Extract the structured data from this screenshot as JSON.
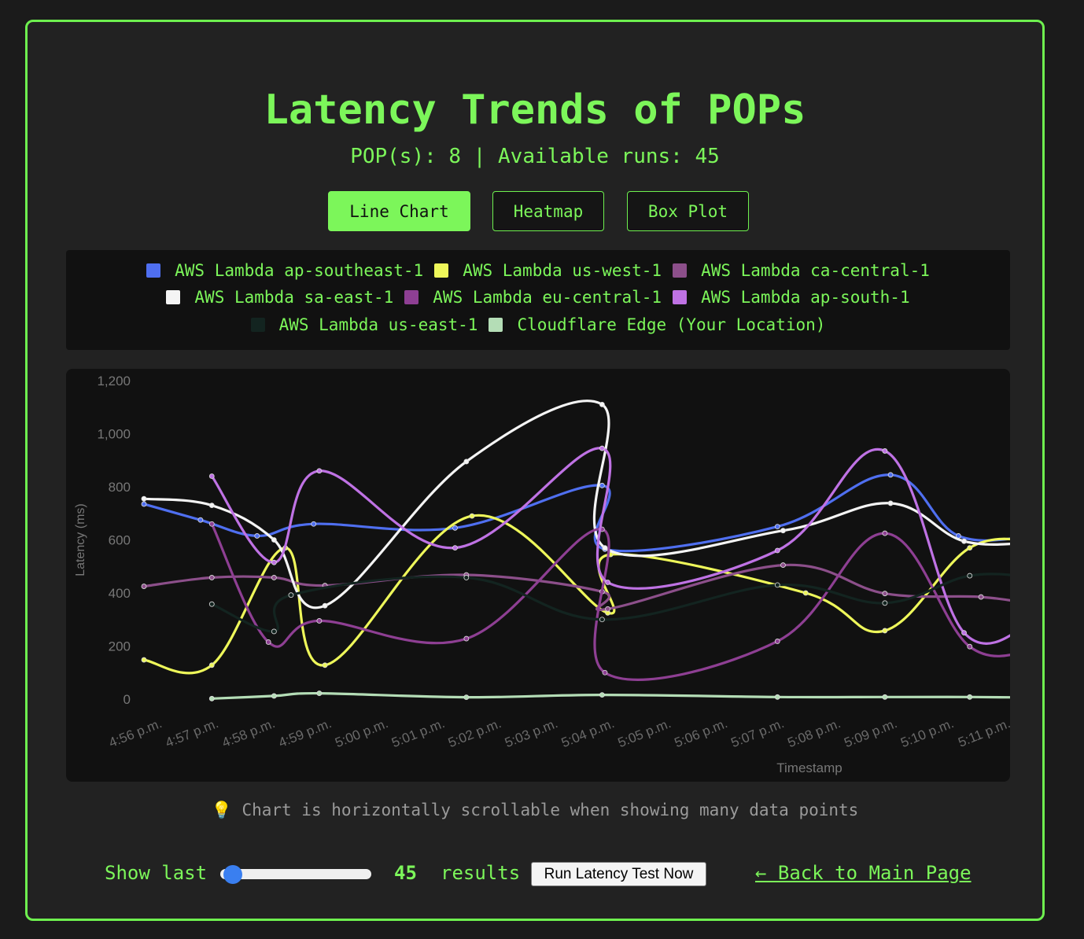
{
  "page": {
    "title": "Latency Trends of POPs",
    "subtitle": "POP(s): 8 | Available runs: 45",
    "accent_color": "#7cf65a"
  },
  "tabs": [
    {
      "label": "Line Chart",
      "active": true
    },
    {
      "label": "Heatmap",
      "active": false
    },
    {
      "label": "Box Plot",
      "active": false
    }
  ],
  "note": "💡 Chart is horizontally scrollable when showing many data points",
  "footer": {
    "show_last_label": "Show last",
    "slider_value": 45,
    "count_display": "45",
    "results_label": "results",
    "run_button_label": "Run Latency Test Now",
    "back_link_label": "← Back to Main Page"
  },
  "chart_data": {
    "type": "line",
    "title": "",
    "xlabel": "Timestamp",
    "ylabel": "Latency (ms)",
    "ylim": [
      0,
      1200
    ],
    "yticks": [
      0,
      200,
      400,
      600,
      800,
      1000,
      1200
    ],
    "ytick_labels": [
      "0",
      "200",
      "400",
      "600",
      "800",
      "1,000",
      "1,200"
    ],
    "grid": false,
    "legend_position": "top",
    "categories": [
      "4:56 p.m.",
      "4:57 p.m.",
      "4:58 p.m.",
      "4:59 p.m.",
      "5:00 p.m.",
      "5:01 p.m.",
      "5:02 p.m.",
      "5:03 p.m.",
      "5:04 p.m.",
      "5:05 p.m.",
      "5:06 p.m.",
      "5:07 p.m.",
      "5:08 p.m.",
      "5:09 p.m.",
      "5:10 p.m.",
      "5:11 p.m."
    ],
    "series": [
      {
        "name": "AWS Lambda ap-southeast-1",
        "color": "#4f6ff0",
        "points": [
          [
            0,
            735
          ],
          [
            1,
            675
          ],
          [
            2,
            615
          ],
          [
            3,
            660
          ],
          [
            5.5,
            645
          ],
          [
            8.1,
            805
          ],
          [
            8.15,
            565
          ],
          [
            11.2,
            650
          ],
          [
            13.2,
            845
          ],
          [
            14.4,
            615
          ],
          [
            15.8,
            618
          ]
        ]
      },
      {
        "name": "AWS Lambda us-west-1",
        "color": "#eef75a",
        "points": [
          [
            0,
            148
          ],
          [
            1.2,
            128
          ],
          [
            2.5,
            570
          ],
          [
            3.2,
            128
          ],
          [
            5.8,
            690
          ],
          [
            8.2,
            325
          ],
          [
            8.25,
            545
          ],
          [
            11.7,
            400
          ],
          [
            13.1,
            258
          ],
          [
            14.6,
            570
          ],
          [
            15.8,
            595
          ]
        ]
      },
      {
        "name": "AWS Lambda ca-central-1",
        "color": "#8c4f8a",
        "points": [
          [
            0,
            425
          ],
          [
            1.2,
            458
          ],
          [
            2.3,
            458
          ],
          [
            3.2,
            428
          ],
          [
            5.7,
            468
          ],
          [
            8.1,
            405
          ],
          [
            8.2,
            340
          ],
          [
            11.3,
            505
          ],
          [
            13.1,
            398
          ],
          [
            14.8,
            385
          ],
          [
            15.8,
            355
          ]
        ]
      },
      {
        "name": "AWS Lambda sa-east-1",
        "color": "#f4f4f4",
        "points": [
          [
            0,
            755
          ],
          [
            1.2,
            730
          ],
          [
            2.3,
            600
          ],
          [
            3.2,
            352
          ],
          [
            5.7,
            895
          ],
          [
            8.1,
            1110
          ],
          [
            8.15,
            570
          ],
          [
            11.3,
            635
          ],
          [
            13.2,
            738
          ],
          [
            14.5,
            595
          ],
          [
            15.8,
            592
          ]
        ]
      },
      {
        "name": "AWS Lambda eu-central-1",
        "color": "#8e3f93",
        "points": [
          [
            1.2,
            660
          ],
          [
            2.2,
            215
          ],
          [
            3.1,
            295
          ],
          [
            5.7,
            228
          ],
          [
            8.1,
            640
          ],
          [
            8.15,
            100
          ],
          [
            11.2,
            218
          ],
          [
            13.1,
            625
          ],
          [
            14.6,
            198
          ],
          [
            15.8,
            192
          ]
        ]
      },
      {
        "name": "AWS Lambda ap-south-1",
        "color": "#bf72e4",
        "points": [
          [
            1.2,
            840
          ],
          [
            2.3,
            515
          ],
          [
            3.1,
            860
          ],
          [
            5.5,
            570
          ],
          [
            8.1,
            945
          ],
          [
            8.2,
            440
          ],
          [
            11.2,
            560
          ],
          [
            13.1,
            935
          ],
          [
            14.5,
            250
          ],
          [
            15.8,
            305
          ]
        ]
      },
      {
        "name": "AWS Lambda us-east-1",
        "color": "#132420",
        "points": [
          [
            1.2,
            358
          ],
          [
            2.3,
            255
          ],
          [
            2.6,
            392
          ],
          [
            5.7,
            458
          ],
          [
            8.1,
            300
          ],
          [
            11.2,
            430
          ],
          [
            13.1,
            362
          ],
          [
            14.6,
            465
          ],
          [
            15.8,
            458
          ]
        ]
      },
      {
        "name": "Cloudflare Edge (Your Location)",
        "color": "#b4ddb6",
        "points": [
          [
            1.2,
            2
          ],
          [
            2.3,
            12
          ],
          [
            3.1,
            22
          ],
          [
            5.7,
            7
          ],
          [
            8.1,
            16
          ],
          [
            11.2,
            8
          ],
          [
            13.1,
            8
          ],
          [
            14.6,
            8
          ],
          [
            15.8,
            6
          ]
        ]
      }
    ]
  }
}
